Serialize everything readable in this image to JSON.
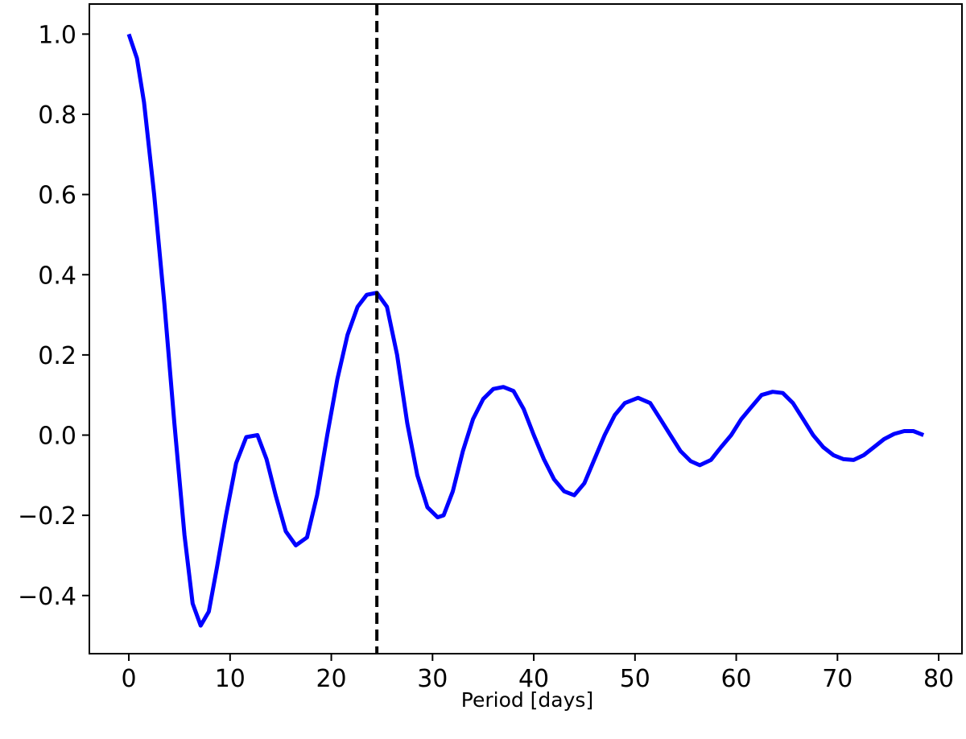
{
  "chart_data": {
    "type": "line",
    "title": "",
    "xlabel": "Period [days]",
    "ylabel": "",
    "xlim": [
      -3.9,
      82.3
    ],
    "ylim": [
      -0.545,
      1.075
    ],
    "x_ticks": [
      0,
      10,
      20,
      30,
      40,
      50,
      60,
      70,
      80
    ],
    "x_tick_labels": [
      "0",
      "10",
      "20",
      "30",
      "40",
      "50",
      "60",
      "70",
      "80"
    ],
    "y_ticks": [
      -0.4,
      -0.2,
      0.0,
      0.2,
      0.4,
      0.6,
      0.8,
      1.0
    ],
    "y_tick_labels": [
      "−0.4",
      "−0.2",
      "0.0",
      "0.2",
      "0.4",
      "0.6",
      "0.8",
      "1.0"
    ],
    "grid": false,
    "series": [
      {
        "color": "#0000ff",
        "x": [
          0,
          0.8,
          1.5,
          2.5,
          3.5,
          4.5,
          5.5,
          6.3,
          7.1,
          7.9,
          8.7,
          9.6,
          10.6,
          11.6,
          12.7,
          13.6,
          14.5,
          15.5,
          16.5,
          17.6,
          18.6,
          19.6,
          20.6,
          21.6,
          22.6,
          23.5,
          24.5,
          25.5,
          26.5,
          27.5,
          28.5,
          29.5,
          30.5,
          31.1,
          32.0,
          33.0,
          34.0,
          35.0,
          36.0,
          37.0,
          38.0,
          39.0,
          40.0,
          41.0,
          42.0,
          43.0,
          44.0,
          45.0,
          46.0,
          47.0,
          48.0,
          49.0,
          50.3,
          51.5,
          52.5,
          53.5,
          54.5,
          55.5,
          56.4,
          57.5,
          58.5,
          59.5,
          60.5,
          61.5,
          62.5,
          63.6,
          64.6,
          65.6,
          66.6,
          67.6,
          68.6,
          69.6,
          70.6,
          71.6,
          72.6,
          73.6,
          74.6,
          75.6,
          76.6,
          77.5,
          78.5
        ],
        "y": [
          1.0,
          0.94,
          0.83,
          0.6,
          0.33,
          0.03,
          -0.25,
          -0.42,
          -0.475,
          -0.44,
          -0.33,
          -0.2,
          -0.07,
          -0.005,
          0.0,
          -0.06,
          -0.15,
          -0.24,
          -0.275,
          -0.255,
          -0.15,
          0.0,
          0.14,
          0.25,
          0.32,
          0.35,
          0.355,
          0.32,
          0.2,
          0.03,
          -0.1,
          -0.18,
          -0.205,
          -0.2,
          -0.14,
          -0.04,
          0.04,
          0.09,
          0.115,
          0.12,
          0.11,
          0.065,
          0.0,
          -0.06,
          -0.11,
          -0.14,
          -0.15,
          -0.12,
          -0.06,
          0.0,
          0.05,
          0.08,
          0.093,
          0.08,
          0.04,
          0.0,
          -0.04,
          -0.065,
          -0.075,
          -0.062,
          -0.03,
          0.0,
          0.04,
          0.07,
          0.1,
          0.108,
          0.105,
          0.08,
          0.04,
          0.0,
          -0.03,
          -0.05,
          -0.06,
          -0.062,
          -0.05,
          -0.03,
          -0.01,
          0.003,
          0.01,
          0.01,
          0.0
        ]
      }
    ],
    "vline": {
      "x": 24.5,
      "style": "dashed",
      "color": "#000000"
    }
  }
}
